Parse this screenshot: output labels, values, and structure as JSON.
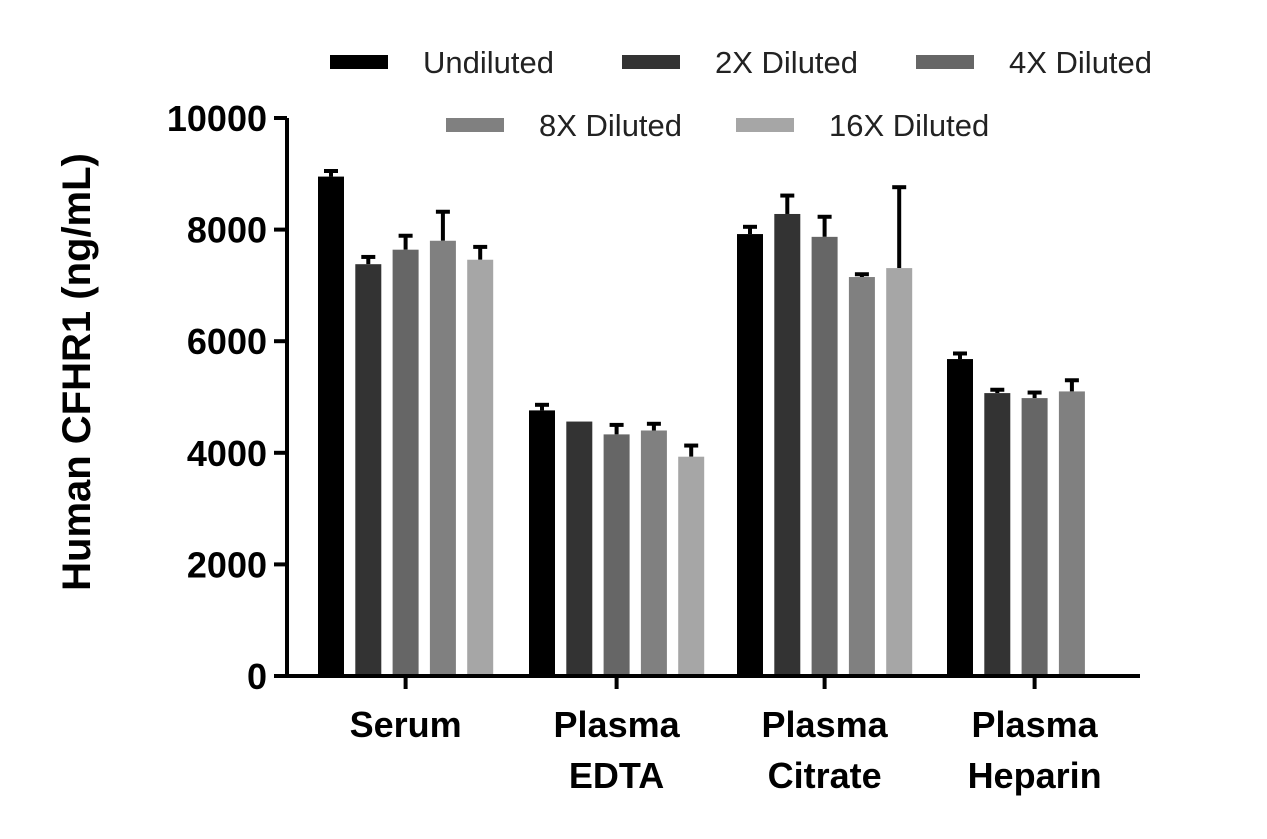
{
  "chart_data": {
    "type": "bar",
    "ylabel": "Human CFHR1 (ng/mL)",
    "xlabel": "",
    "ylim": [
      0,
      10000
    ],
    "yticks": [
      0,
      2000,
      4000,
      6000,
      8000,
      10000
    ],
    "categories": [
      {
        "lines": [
          "Serum"
        ]
      },
      {
        "lines": [
          "Plasma",
          "EDTA"
        ]
      },
      {
        "lines": [
          "Plasma",
          "Citrate"
        ]
      },
      {
        "lines": [
          "Plasma",
          "Heparin"
        ]
      }
    ],
    "legend_position": "top",
    "series": [
      {
        "name": "Undiluted",
        "color": "#000000",
        "values": [
          8950,
          4760,
          7920,
          5680
        ],
        "errors": [
          100,
          100,
          130,
          100
        ]
      },
      {
        "name": "2X Diluted",
        "color": "#333333",
        "values": [
          7380,
          4560,
          8280,
          5070
        ],
        "errors": [
          130,
          0,
          330,
          60
        ]
      },
      {
        "name": "4X Diluted",
        "color": "#666666",
        "values": [
          7640,
          4330,
          7870,
          4980
        ],
        "errors": [
          250,
          170,
          360,
          100
        ]
      },
      {
        "name": "8X Diluted",
        "color": "#808080",
        "values": [
          7800,
          4400,
          7150,
          5100
        ],
        "errors": [
          520,
          120,
          50,
          200
        ]
      },
      {
        "name": "16X Diluted",
        "color": "#a6a6a6",
        "values": [
          7460,
          3930,
          7310,
          null
        ],
        "errors": [
          230,
          200,
          1450,
          null
        ]
      }
    ]
  }
}
